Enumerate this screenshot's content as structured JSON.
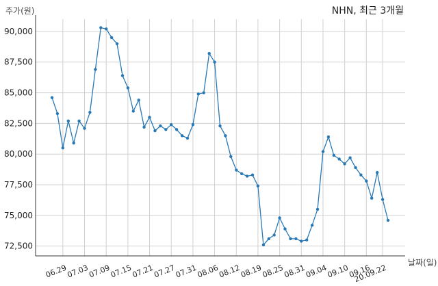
{
  "chart_data": {
    "type": "line",
    "title": "NHN, 최근 3개월",
    "ylabel": "주가(원)",
    "xlabel": "날짜(일)",
    "ylim": [
      71700,
      91000
    ],
    "yticks": [
      72500,
      75000,
      77500,
      80000,
      82500,
      85000,
      87500,
      90000
    ],
    "ytick_labels": [
      "72,500",
      "75,000",
      "77,500",
      "80,000",
      "82,500",
      "85,000",
      "87,500",
      "90,000"
    ],
    "xtick_labels": [
      "06.29",
      "07.03",
      "07.09",
      "07.15",
      "07.21",
      "07.27",
      "07.31",
      "08.06",
      "08.12",
      "08.19",
      "08.25",
      "08.31",
      "09.04",
      "09.10",
      "09.16",
      "20.09.22"
    ],
    "xtick_index": [
      2,
      6,
      10,
      14,
      18,
      22,
      26,
      30,
      34,
      38,
      42,
      46,
      50,
      54,
      58,
      61
    ],
    "grid": true,
    "line_color": "#2878b5",
    "series": [
      {
        "values": [
          84600,
          83300,
          80500,
          82700,
          80900,
          82700,
          82100,
          83400,
          86900,
          90300,
          90200,
          89500,
          89000,
          86400,
          85400,
          83500,
          84400,
          82200,
          83000,
          81900,
          82300,
          82000,
          82400,
          82000,
          81500,
          81300,
          82400,
          84900,
          85000,
          88200,
          87500,
          82300,
          81500,
          79800,
          78700,
          78400,
          78200,
          78300,
          77400,
          72600,
          73100,
          73400,
          74800,
          73900,
          73100,
          73100,
          72900,
          73000,
          74200,
          75500,
          80200,
          81400,
          79900,
          79600,
          79200,
          79700,
          78900,
          78300,
          77800,
          76400,
          78500,
          76300,
          74600
        ]
      }
    ]
  }
}
